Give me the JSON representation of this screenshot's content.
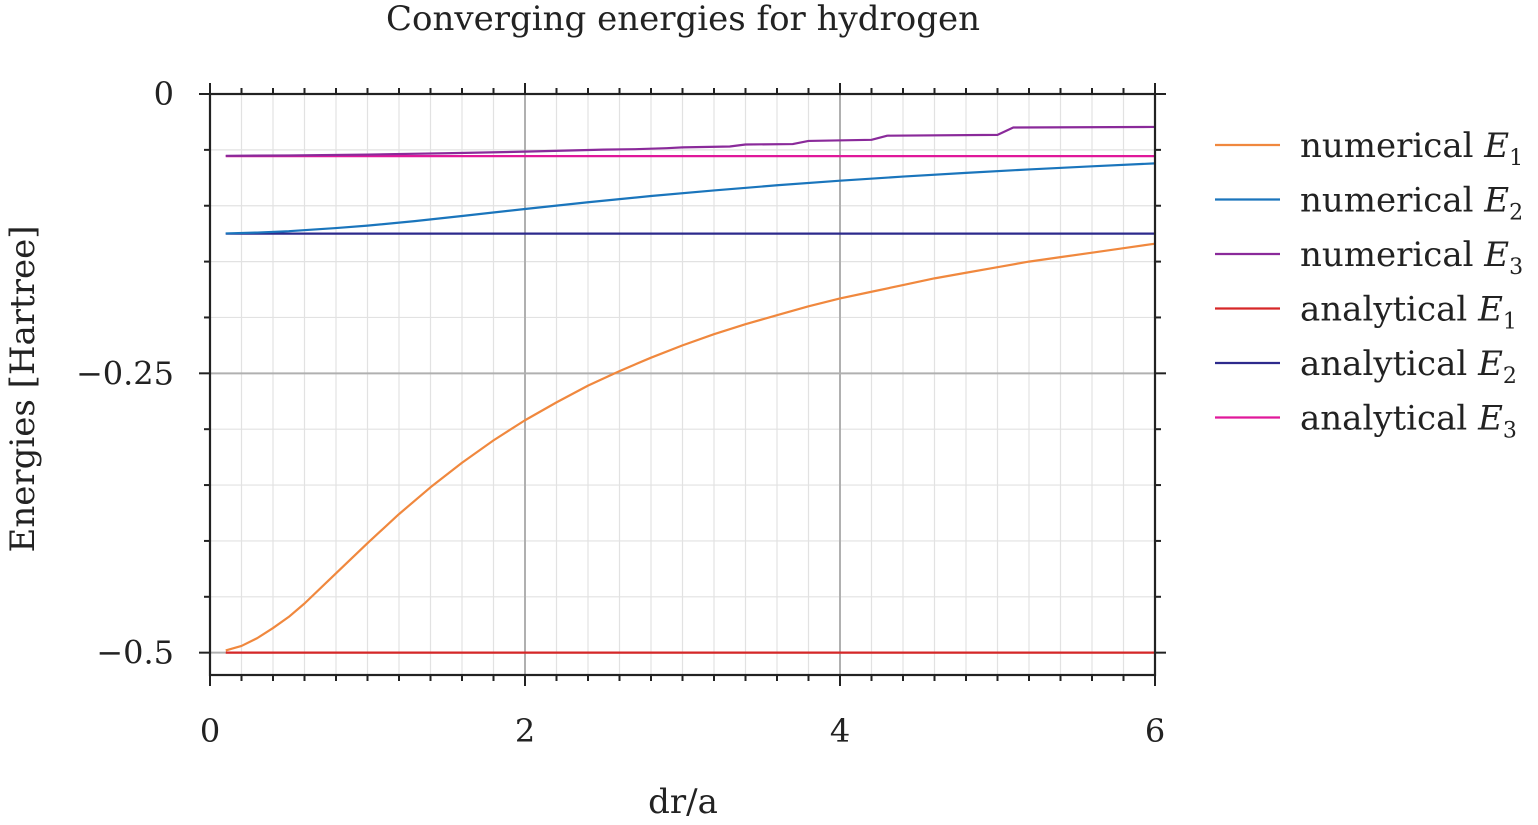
{
  "chart_data": {
    "type": "line",
    "title": "Converging energies for hydrogen",
    "xlabel": "dr/a",
    "ylabel": "Energies [Hartree]",
    "xlim": [
      0,
      6
    ],
    "ylim": [
      -0.52,
      0.0
    ],
    "xticks": [
      0,
      2,
      4,
      6
    ],
    "xtick_labels": [
      "0",
      "2",
      "4",
      "6"
    ],
    "yticks": [
      0,
      -0.25,
      -0.5
    ],
    "ytick_labels": [
      "0",
      "−0.25",
      "−0.5"
    ],
    "grid": true,
    "legend_position": "right-outside",
    "series": [
      {
        "name": "numerical E1",
        "label_main": "numerical ",
        "label_sym": "E",
        "label_sub": "1",
        "color": "#f0883e",
        "x": [
          0.1,
          0.2,
          0.3,
          0.4,
          0.5,
          0.6,
          0.8,
          1.0,
          1.2,
          1.4,
          1.6,
          1.8,
          2.0,
          2.2,
          2.4,
          2.6,
          2.8,
          3.0,
          3.2,
          3.4,
          3.6,
          3.8,
          4.0,
          4.2,
          4.4,
          4.6,
          4.8,
          5.0,
          5.2,
          5.4,
          5.6,
          5.8,
          6.0
        ],
        "y": [
          -0.498,
          -0.494,
          -0.487,
          -0.478,
          -0.468,
          -0.456,
          -0.429,
          -0.402,
          -0.376,
          -0.352,
          -0.33,
          -0.31,
          -0.292,
          -0.276,
          -0.261,
          -0.248,
          -0.236,
          -0.225,
          -0.215,
          -0.206,
          -0.198,
          -0.19,
          -0.183,
          -0.177,
          -0.171,
          -0.165,
          -0.16,
          -0.155,
          -0.15,
          -0.146,
          -0.142,
          -0.138,
          -0.134
        ]
      },
      {
        "name": "numerical E2",
        "label_main": "numerical ",
        "label_sym": "E",
        "label_sub": "2",
        "color": "#1a75bc",
        "x": [
          0.1,
          0.3,
          0.5,
          0.8,
          1.0,
          1.3,
          1.6,
          2.0,
          2.4,
          2.8,
          3.2,
          3.6,
          4.0,
          4.4,
          4.8,
          5.2,
          5.6,
          6.0
        ],
        "y": [
          -0.1248,
          -0.124,
          -0.1228,
          -0.12,
          -0.1178,
          -0.1138,
          -0.1092,
          -0.1029,
          -0.0969,
          -0.0913,
          -0.0863,
          -0.0817,
          -0.0776,
          -0.0739,
          -0.0706,
          -0.0675,
          -0.0647,
          -0.0621
        ]
      },
      {
        "name": "numerical E3",
        "label_main": "numerical ",
        "label_sym": "E",
        "label_sub": "3",
        "color": "#8a2a9a",
        "x": [
          0.1,
          0.5,
          1.0,
          1.5,
          2.0,
          2.5,
          2.7,
          2.9,
          3.0,
          3.3,
          3.4,
          3.7,
          3.8,
          4.2,
          4.3,
          5.0,
          5.1,
          6.0
        ],
        "y": [
          -0.0553,
          -0.055,
          -0.0542,
          -0.053,
          -0.0516,
          -0.0498,
          -0.0494,
          -0.0485,
          -0.0478,
          -0.047,
          -0.0452,
          -0.0448,
          -0.042,
          -0.041,
          -0.0373,
          -0.0366,
          -0.03,
          -0.0295
        ]
      },
      {
        "name": "analytical E1",
        "label_main": "analytical ",
        "label_sym": "E",
        "label_sub": "1",
        "color": "#d62728",
        "x": [
          0.1,
          6.0
        ],
        "y": [
          -0.5,
          -0.5
        ]
      },
      {
        "name": "analytical E2",
        "label_main": "analytical ",
        "label_sym": "E",
        "label_sub": "2",
        "color": "#2d2a8c",
        "x": [
          0.1,
          6.0
        ],
        "y": [
          -0.125,
          -0.125
        ]
      },
      {
        "name": "analytical E3",
        "label_main": "analytical ",
        "label_sym": "E",
        "label_sub": "3",
        "color": "#e0189a",
        "x": [
          0.1,
          6.0
        ],
        "y": [
          -0.0556,
          -0.0556
        ]
      }
    ]
  }
}
